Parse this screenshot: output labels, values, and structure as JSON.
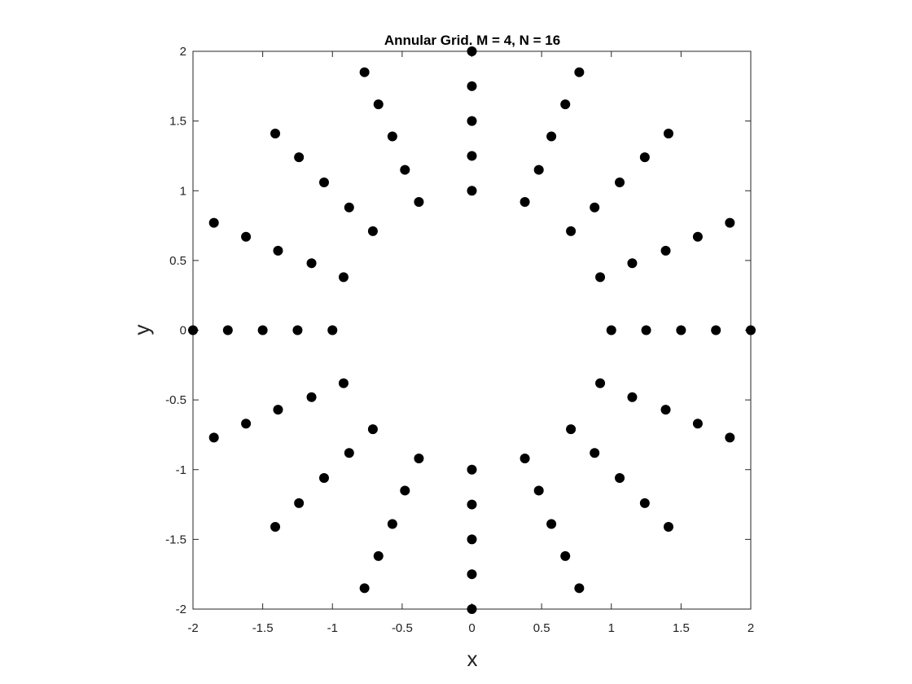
{
  "chart_data": {
    "type": "scatter",
    "title": "Annular Grid. M = 4, N = 16",
    "xlabel": "x",
    "ylabel": "y",
    "xlim": [
      -2,
      2
    ],
    "ylim": [
      -2,
      2
    ],
    "xticks": [
      "-2",
      "-1.5",
      "-1",
      "-0.5",
      "0",
      "0.5",
      "1",
      "1.5",
      "2"
    ],
    "yticks": [
      "2",
      "1.5",
      "1",
      "0.5",
      "0",
      "-0.5",
      "-1",
      "-1.5",
      "-2"
    ],
    "grid": false,
    "marker_color": "#000000",
    "series": [
      {
        "x": [
          1,
          1.25,
          1.5,
          1.75,
          2,
          0.92,
          1.15,
          1.39,
          1.62,
          1.85,
          0.71,
          0.88,
          1.06,
          1.24,
          1.41,
          0.38,
          0.48,
          0.57,
          0.67,
          0.77,
          0,
          0,
          0,
          0,
          0,
          -0.38,
          -0.48,
          -0.57,
          -0.67,
          -0.77,
          -0.71,
          -0.88,
          -1.06,
          -1.24,
          -1.41,
          -0.92,
          -1.15,
          -1.39,
          -1.62,
          -1.85,
          -1,
          -1.25,
          -1.5,
          -1.75,
          -2,
          -0.92,
          -1.15,
          -1.39,
          -1.62,
          -1.85,
          -0.71,
          -0.88,
          -1.06,
          -1.24,
          -1.41,
          -0.38,
          -0.48,
          -0.57,
          -0.67,
          -0.77,
          0,
          0,
          0,
          0,
          0,
          0.38,
          0.48,
          0.57,
          0.67,
          0.77,
          0.71,
          0.88,
          1.06,
          1.24,
          1.41,
          0.92,
          1.15,
          1.39,
          1.62,
          1.85
        ],
        "y": [
          0,
          0,
          0,
          0,
          0,
          0.38,
          0.48,
          0.57,
          0.67,
          0.77,
          0.71,
          0.88,
          1.06,
          1.24,
          1.41,
          0.92,
          1.15,
          1.39,
          1.62,
          1.85,
          1,
          1.25,
          1.5,
          1.75,
          2,
          0.92,
          1.15,
          1.39,
          1.62,
          1.85,
          0.71,
          0.88,
          1.06,
          1.24,
          1.41,
          0.38,
          0.48,
          0.57,
          0.67,
          0.77,
          0,
          0,
          0,
          0,
          0,
          -0.38,
          -0.48,
          -0.57,
          -0.67,
          -0.77,
          -0.71,
          -0.88,
          -1.06,
          -1.24,
          -1.41,
          -0.92,
          -1.15,
          -1.39,
          -1.62,
          -1.85,
          -1,
          -1.25,
          -1.5,
          -1.75,
          -2,
          -0.92,
          -1.15,
          -1.39,
          -1.62,
          -1.85,
          -0.71,
          -0.88,
          -1.06,
          -1.24,
          -1.41,
          -0.38,
          -0.48,
          -0.57,
          -0.67,
          -0.77
        ]
      }
    ]
  }
}
